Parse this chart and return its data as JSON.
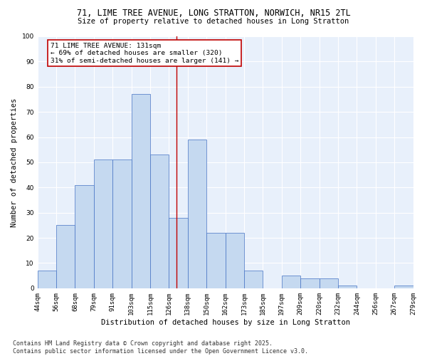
{
  "title_line1": "71, LIME TREE AVENUE, LONG STRATTON, NORWICH, NR15 2TL",
  "title_line2": "Size of property relative to detached houses in Long Stratton",
  "xlabel": "Distribution of detached houses by size in Long Stratton",
  "ylabel": "Number of detached properties",
  "categories": [
    "44sqm",
    "56sqm",
    "68sqm",
    "79sqm",
    "91sqm",
    "103sqm",
    "115sqm",
    "126sqm",
    "138sqm",
    "150sqm",
    "162sqm",
    "173sqm",
    "185sqm",
    "197sqm",
    "209sqm",
    "220sqm",
    "232sqm",
    "244sqm",
    "256sqm",
    "267sqm",
    "279sqm"
  ],
  "values": [
    7,
    25,
    41,
    51,
    51,
    77,
    53,
    28,
    59,
    22,
    22,
    7,
    0,
    5,
    4,
    4,
    1,
    0,
    0,
    1
  ],
  "bar_color": "#c5d9f0",
  "bar_edge_color": "#4472c4",
  "vline_color": "#c00000",
  "annotation_line1": "71 LIME TREE AVENUE: 131sqm",
  "annotation_line2": "← 69% of detached houses are smaller (320)",
  "annotation_line3": "31% of semi-detached houses are larger (141) →",
  "ylim": [
    0,
    100
  ],
  "yticks": [
    0,
    10,
    20,
    30,
    40,
    50,
    60,
    70,
    80,
    90,
    100
  ],
  "bg_color": "#e8f0fb",
  "grid_color": "#ffffff",
  "footer_line1": "Contains HM Land Registry data © Crown copyright and database right 2025.",
  "footer_line2": "Contains public sector information licensed under the Open Government Licence v3.0.",
  "title_fontsize": 8.5,
  "subtitle_fontsize": 7.5,
  "axis_label_fontsize": 7.5,
  "tick_fontsize": 6.5,
  "footer_fontsize": 6.0,
  "annotation_fontsize": 6.8
}
